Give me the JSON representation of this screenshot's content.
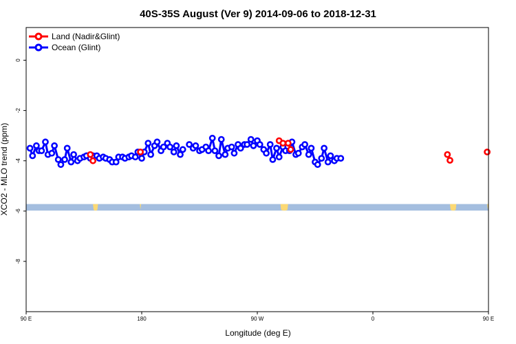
{
  "chart_data": {
    "type": "line",
    "title": "40S-35S August (Ver 9)   2014-09-06 to 2018-12-31",
    "xlabel": "Longitude (deg E)",
    "ylabel": "XCO2 - MLO trend (ppm)",
    "xlim": [
      90,
      450
    ],
    "ylim": [
      -10,
      1.3
    ],
    "x_ticks": [
      {
        "value": 90,
        "label": "90 E"
      },
      {
        "value": 180,
        "label": "180"
      },
      {
        "value": 270,
        "label": "90 W"
      },
      {
        "value": 360,
        "label": "0"
      },
      {
        "value": 450,
        "label": "90 E"
      },
      {
        "value": 540,
        "label": "180"
      }
    ],
    "y_ticks": [
      {
        "value": 0,
        "label": "0"
      },
      {
        "value": -2,
        "label": "-2"
      },
      {
        "value": -4,
        "label": "-4"
      },
      {
        "value": -6,
        "label": "-6"
      },
      {
        "value": -8,
        "label": "-8"
      }
    ],
    "legend": {
      "placement": "top-left"
    },
    "colors": {
      "land": "#ff0000",
      "ocean": "#0000ff",
      "ocean_band": "#a4bedf",
      "land_band": "#fcd974"
    },
    "series": [
      {
        "name": "Land (Nadir&Glint)",
        "color": "#ff0000",
        "segments": [
          [
            [
              140,
              -3.75
            ],
            [
              142,
              -4.0
            ]
          ],
          [
            [
              179,
              -3.65
            ]
          ],
          [
            [
              287,
              -3.2
            ],
            [
              290,
              -3.3
            ],
            [
              294,
              -3.3
            ],
            [
              296,
              -3.55
            ]
          ],
          [
            [
              418,
              -3.75
            ],
            [
              420,
              -3.98
            ]
          ],
          [
            [
              449,
              -3.65
            ]
          ]
        ]
      },
      {
        "name": "Ocean (Glint)",
        "color": "#0000ff",
        "segments": [
          [
            [
              93,
              -3.5
            ],
            [
              95,
              -3.8
            ],
            [
              98,
              -3.4
            ],
            [
              100,
              -3.6
            ],
            [
              102,
              -3.6
            ],
            [
              105,
              -3.25
            ],
            [
              107,
              -3.75
            ],
            [
              110,
              -3.7
            ],
            [
              112,
              -3.4
            ],
            [
              115,
              -3.95
            ],
            [
              117,
              -4.15
            ],
            [
              120,
              -3.95
            ],
            [
              122,
              -3.5
            ],
            [
              125,
              -4.05
            ],
            [
              127,
              -3.75
            ],
            [
              130,
              -4.0
            ],
            [
              132,
              -3.9
            ],
            [
              135,
              -3.85
            ],
            [
              137,
              -3.8
            ],
            [
              140,
              -3.9
            ],
            [
              142,
              -3.8
            ],
            [
              145,
              -3.8
            ],
            [
              147,
              -3.9
            ],
            [
              150,
              -3.85
            ],
            [
              152,
              -3.9
            ],
            [
              155,
              -3.95
            ],
            [
              157,
              -4.05
            ],
            [
              160,
              -4.05
            ],
            [
              162,
              -3.85
            ],
            [
              165,
              -3.85
            ],
            [
              167,
              -3.9
            ],
            [
              170,
              -3.85
            ],
            [
              172,
              -3.8
            ],
            [
              175,
              -3.85
            ],
            [
              177,
              -3.65
            ],
            [
              180,
              -3.9
            ],
            [
              182,
              -3.65
            ],
            [
              185,
              -3.3
            ],
            [
              187,
              -3.75
            ],
            [
              190,
              -3.4
            ],
            [
              192,
              -3.25
            ],
            [
              195,
              -3.6
            ],
            [
              197,
              -3.45
            ],
            [
              200,
              -3.3
            ],
            [
              202,
              -3.45
            ],
            [
              205,
              -3.65
            ],
            [
              207,
              -3.4
            ],
            [
              210,
              -3.75
            ],
            [
              212,
              -3.55
            ]
          ],
          [
            [
              217,
              -3.35
            ],
            [
              220,
              -3.5
            ],
            [
              222,
              -3.4
            ],
            [
              225,
              -3.6
            ],
            [
              227,
              -3.55
            ],
            [
              230,
              -3.45
            ],
            [
              232,
              -3.6
            ],
            [
              235,
              -3.1
            ],
            [
              237,
              -3.6
            ],
            [
              240,
              -3.8
            ],
            [
              242,
              -3.15
            ],
            [
              245,
              -3.75
            ],
            [
              247,
              -3.5
            ],
            [
              250,
              -3.45
            ],
            [
              252,
              -3.7
            ],
            [
              255,
              -3.35
            ],
            [
              257,
              -3.5
            ],
            [
              260,
              -3.35
            ],
            [
              262,
              -3.35
            ],
            [
              265,
              -3.15
            ],
            [
              267,
              -3.4
            ],
            [
              270,
              -3.2
            ],
            [
              272,
              -3.35
            ],
            [
              275,
              -3.55
            ],
            [
              277,
              -3.7
            ],
            [
              280,
              -3.35
            ],
            [
              282,
              -3.95
            ],
            [
              285,
              -3.5
            ],
            [
              287,
              -3.85
            ],
            [
              290,
              -3.45
            ],
            [
              292,
              -3.6
            ],
            [
              295,
              -3.6
            ],
            [
              297,
              -3.25
            ],
            [
              300,
              -3.75
            ],
            [
              302,
              -3.7
            ],
            [
              305,
              -3.45
            ],
            [
              307,
              -3.35
            ],
            [
              310,
              -3.75
            ],
            [
              312,
              -3.5
            ],
            [
              315,
              -4.05
            ],
            [
              317,
              -4.15
            ],
            [
              320,
              -3.9
            ],
            [
              322,
              -3.5
            ],
            [
              325,
              -4.05
            ],
            [
              327,
              -3.8
            ],
            [
              330,
              -4.0
            ],
            [
              332,
              -3.9
            ],
            [
              335,
              -3.9
            ]
          ]
        ]
      }
    ]
  },
  "legend_items": {
    "land": "Land (Nadir&Glint)",
    "ocean": "Ocean (Glint)"
  }
}
